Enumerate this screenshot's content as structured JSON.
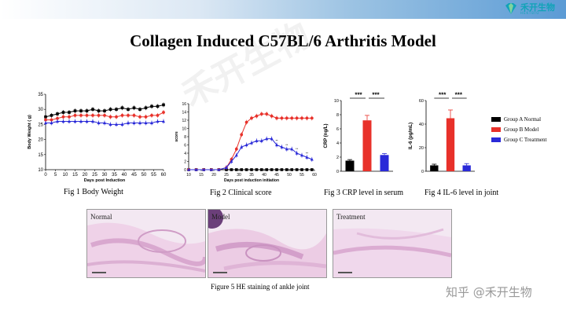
{
  "slide": {
    "title": "Collagen Induced C57BL/6 Arthritis Model",
    "logo_cn": "禾开生物",
    "logo_en": "HEKTBIO",
    "watermark": "禾开生物",
    "zhihu_watermark": "知乎 @禾开生物"
  },
  "colors": {
    "groupA": "#000000",
    "groupB": "#e8312a",
    "groupC": "#2a2ad8",
    "he_bg": "#f3e8f2",
    "he_tissue": "#e6bede"
  },
  "chart_data": [
    {
      "id": "fig1",
      "type": "line",
      "caption": "Fig 1 Body Weight",
      "xlabel": "Days post Induction",
      "ylabel": "Body Weight ( g)",
      "xlim": [
        0,
        60
      ],
      "ylim": [
        10,
        35
      ],
      "xticks": [
        0,
        5,
        10,
        15,
        20,
        25,
        30,
        35,
        40,
        45,
        50,
        55,
        60
      ],
      "yticks": [
        10,
        15,
        20,
        25,
        30,
        35
      ],
      "x": [
        0,
        3,
        6,
        9,
        12,
        15,
        18,
        21,
        24,
        27,
        30,
        33,
        36,
        39,
        42,
        45,
        48,
        51,
        54,
        57,
        60
      ],
      "series": [
        {
          "name": "Group A Normal",
          "color_key": "groupA",
          "marker": "square",
          "values": [
            27.5,
            28,
            28.5,
            29,
            29,
            29.5,
            29.5,
            29.5,
            30,
            29.5,
            29.5,
            30,
            30,
            30.5,
            30,
            30.5,
            30,
            30.5,
            31,
            31,
            31.5
          ]
        },
        {
          "name": "Group B Model",
          "color_key": "groupB",
          "marker": "circle",
          "values": [
            26.5,
            26.5,
            27,
            27.5,
            27.5,
            28,
            28,
            28,
            28,
            28,
            28,
            27.5,
            27.5,
            28,
            28,
            28,
            27.5,
            27.5,
            28,
            28,
            29
          ]
        },
        {
          "name": "Group C Treatment",
          "color_key": "groupC",
          "marker": "triangle",
          "values": [
            25.5,
            25.5,
            26,
            26,
            26,
            26,
            26,
            26,
            26,
            25.5,
            25.5,
            25,
            25,
            25,
            25.5,
            25.5,
            25.5,
            25.5,
            25.5,
            26,
            26
          ]
        }
      ]
    },
    {
      "id": "fig2",
      "type": "line",
      "caption": "Fig 2 Clinical score",
      "xlabel": "Days post induction initiation",
      "ylabel": "score",
      "xlim": [
        10,
        60
      ],
      "ylim": [
        0,
        16
      ],
      "xticks": [
        10,
        15,
        20,
        25,
        30,
        35,
        40,
        45,
        50,
        55,
        60
      ],
      "yticks": [
        0,
        2,
        4,
        6,
        8,
        10,
        12,
        14,
        16
      ],
      "significance": "**",
      "x": [
        10,
        13,
        16,
        19,
        22,
        25,
        27,
        29,
        31,
        33,
        35,
        37,
        39,
        41,
        43,
        45,
        47,
        49,
        51,
        53,
        55,
        57,
        59
      ],
      "series": [
        {
          "name": "Group A Normal",
          "color_key": "groupA",
          "marker": "square",
          "values": [
            0,
            0,
            0,
            0,
            0,
            0,
            0,
            0,
            0,
            0,
            0,
            0,
            0,
            0,
            0,
            0,
            0,
            0,
            0,
            0,
            0,
            0,
            0
          ]
        },
        {
          "name": "Group B Model",
          "color_key": "groupB",
          "marker": "circle",
          "values": [
            0,
            0,
            0,
            0,
            0,
            0.5,
            2.5,
            5,
            8.5,
            11.5,
            12.5,
            13,
            13.5,
            13.5,
            13,
            12.5,
            12.5,
            12.5,
            12.5,
            12.5,
            12.5,
            12.5,
            12.5
          ]
        },
        {
          "name": "Group C Treatment",
          "color_key": "groupC",
          "marker": "triangle",
          "values": [
            0,
            0,
            0,
            0,
            0,
            0.5,
            2,
            3.5,
            5.5,
            6,
            6.5,
            7,
            7,
            7.5,
            7.5,
            6,
            5.5,
            5,
            5,
            4,
            3.5,
            3,
            2.5
          ]
        }
      ]
    },
    {
      "id": "fig3",
      "type": "bar",
      "caption": "Fig 3 CRP level in serum",
      "ylabel": "CRP (ng/L)",
      "ylim": [
        0,
        10
      ],
      "yticks": [
        0,
        2,
        4,
        6,
        8,
        10
      ],
      "significance": [
        "***",
        "***"
      ],
      "categories": [
        "Group A Normal",
        "Group B Model",
        "Group C Treatment"
      ],
      "values": [
        1.5,
        7.2,
        2.3
      ],
      "errors": [
        0.15,
        0.7,
        0.2
      ]
    },
    {
      "id": "fig4",
      "type": "bar",
      "caption": "Fig 4 IL-6 level in joint",
      "ylabel": "IL-6 (pg/mL)",
      "ylim": [
        0,
        60
      ],
      "yticks": [
        0,
        20,
        40,
        60
      ],
      "significance": [
        "***",
        "***"
      ],
      "categories": [
        "Group A Normal",
        "Group B Model",
        "Group C Treatment"
      ],
      "values": [
        5,
        45,
        5
      ],
      "errors": [
        1,
        7,
        1.5
      ]
    }
  ],
  "legend": {
    "items": [
      {
        "label": "Group A Normal",
        "color_key": "groupA"
      },
      {
        "label": "Group B Model",
        "color_key": "groupB"
      },
      {
        "label": "Group C Treatment",
        "color_key": "groupC"
      }
    ]
  },
  "he_staining": {
    "caption": "Figure 5 HE staining of ankle joint",
    "panels": [
      {
        "label": "Normal"
      },
      {
        "label": "Model"
      },
      {
        "label": "Treatment"
      }
    ]
  }
}
